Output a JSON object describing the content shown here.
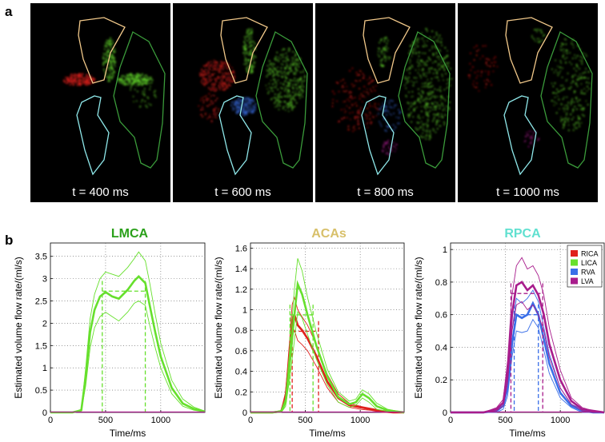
{
  "panel_a": {
    "label": "a",
    "frames": [
      "t = 400 ms",
      "t = 600 ms",
      "t = 800 ms",
      "t = 1000 ms"
    ]
  },
  "panel_b": {
    "label": "b"
  },
  "colors": {
    "RICA": "#e0201c",
    "LICA": "#66e02c",
    "RVA": "#3a6fe8",
    "LVA": "#a81c8c",
    "lmca_title": "#2aa01a",
    "acas_title": "#d8c06a",
    "rpca_title": "#60e0d0",
    "outline_aca": "#f2c98a",
    "outline_mca": "#3a9a3a",
    "outline_pca": "#8fe8ea"
  },
  "legend": [
    "RICA",
    "LICA",
    "RVA",
    "LVA"
  ],
  "chart_data": [
    {
      "type": "line",
      "title": "LMCA",
      "xlabel": "Time/ms",
      "ylabel": "Estimated volume flow rate/(ml/s)",
      "xlim": [
        0,
        1400
      ],
      "ylim": [
        0,
        3.8
      ],
      "xticks": [
        0,
        500,
        1000
      ],
      "yticks": [
        0,
        0.5,
        1,
        1.5,
        2,
        2.5,
        3,
        3.5
      ],
      "grid": "dotted",
      "series": [
        {
          "name": "LICA",
          "x": [
            0,
            200,
            280,
            320,
            360,
            400,
            450,
            500,
            560,
            620,
            700,
            760,
            800,
            860,
            900,
            950,
            1000,
            1100,
            1200,
            1300,
            1400
          ],
          "mean": [
            0,
            0,
            0.05,
            0.8,
            1.8,
            2.3,
            2.6,
            2.7,
            2.6,
            2.55,
            2.75,
            2.95,
            3.05,
            2.9,
            2.4,
            1.8,
            1.25,
            0.55,
            0.2,
            0.08,
            0.02
          ],
          "upper": [
            0,
            0,
            0.07,
            1.0,
            2.1,
            2.65,
            3.0,
            3.15,
            3.1,
            3.05,
            3.25,
            3.45,
            3.6,
            3.4,
            2.9,
            2.2,
            1.55,
            0.72,
            0.3,
            0.12,
            0.03
          ],
          "lower": [
            0,
            0,
            0.03,
            0.6,
            1.45,
            1.9,
            2.15,
            2.25,
            2.15,
            2.05,
            2.25,
            2.45,
            2.5,
            2.4,
            1.95,
            1.45,
            1.0,
            0.42,
            0.14,
            0.05,
            0.01
          ],
          "marker_x": [
            470,
            860
          ],
          "marker_y": 2.72
        }
      ]
    },
    {
      "type": "line",
      "title": "ACAs",
      "xlabel": "Time/ms",
      "ylabel": "Estimated volume flow rate/(ml/s)",
      "xlim": [
        0,
        1400
      ],
      "ylim": [
        0,
        1.65
      ],
      "xticks": [
        0,
        500,
        1000
      ],
      "yticks": [
        0,
        0.2,
        0.4,
        0.6,
        0.8,
        1,
        1.2,
        1.4,
        1.6
      ],
      "grid": "dotted",
      "series": [
        {
          "name": "RICA",
          "x": [
            0,
            200,
            280,
            320,
            360,
            380,
            400,
            430,
            470,
            520,
            600,
            700,
            800,
            900,
            1000,
            1100,
            1200,
            1300,
            1400
          ],
          "mean": [
            0,
            0,
            0.01,
            0.15,
            0.6,
            0.9,
            0.95,
            0.85,
            0.8,
            0.72,
            0.55,
            0.3,
            0.14,
            0.07,
            0.05,
            0.03,
            0.01,
            0,
            0
          ],
          "upper": [
            0,
            0,
            0.02,
            0.2,
            0.75,
            1.05,
            1.12,
            1.0,
            0.93,
            0.85,
            0.66,
            0.37,
            0.18,
            0.09,
            0.06,
            0.04,
            0.02,
            0.01,
            0
          ],
          "lower": [
            0,
            0,
            0.0,
            0.1,
            0.45,
            0.74,
            0.8,
            0.7,
            0.66,
            0.6,
            0.45,
            0.24,
            0.1,
            0.05,
            0.03,
            0.02,
            0.0,
            0,
            0
          ],
          "marker_x": [
            380,
            620
          ],
          "marker_y": 0.79
        },
        {
          "name": "LICA",
          "x": [
            0,
            200,
            280,
            320,
            360,
            400,
            430,
            470,
            520,
            600,
            700,
            800,
            900,
            960,
            1020,
            1080,
            1150,
            1250,
            1400
          ],
          "mean": [
            0,
            0,
            0.01,
            0.1,
            0.5,
            0.95,
            1.25,
            1.15,
            0.95,
            0.65,
            0.35,
            0.15,
            0.08,
            0.1,
            0.18,
            0.14,
            0.06,
            0.02,
            0
          ],
          "upper": [
            0,
            0,
            0.02,
            0.14,
            0.65,
            1.2,
            1.5,
            1.38,
            1.12,
            0.78,
            0.42,
            0.2,
            0.11,
            0.13,
            0.22,
            0.18,
            0.09,
            0.03,
            0
          ],
          "lower": [
            0,
            0,
            0.0,
            0.06,
            0.35,
            0.7,
            0.98,
            0.92,
            0.76,
            0.52,
            0.27,
            0.1,
            0.05,
            0.07,
            0.14,
            0.1,
            0.03,
            0.01,
            0
          ],
          "marker_x": [
            360,
            570
          ],
          "marker_y": 0.95
        }
      ]
    },
    {
      "type": "line",
      "title": "RPCA",
      "xlabel": "Time/ms",
      "ylabel": "Estimated volume flow rate/(ml/s)",
      "xlim": [
        0,
        1400
      ],
      "ylim": [
        0,
        1.04
      ],
      "xticks": [
        0,
        500,
        1000
      ],
      "yticks": [
        0,
        0.2,
        0.4,
        0.6,
        0.8,
        1
      ],
      "grid": "dotted",
      "legend_position": "top-right",
      "series": [
        {
          "name": "RVA",
          "x": [
            0,
            300,
            420,
            480,
            520,
            560,
            600,
            650,
            700,
            750,
            800,
            850,
            900,
            1000,
            1100,
            1200,
            1300,
            1400
          ],
          "mean": [
            0,
            0.0,
            0.01,
            0.04,
            0.15,
            0.42,
            0.6,
            0.58,
            0.6,
            0.67,
            0.6,
            0.45,
            0.3,
            0.12,
            0.04,
            0.01,
            0,
            0
          ],
          "upper": [
            0,
            0.0,
            0.02,
            0.06,
            0.2,
            0.5,
            0.7,
            0.67,
            0.7,
            0.75,
            0.68,
            0.52,
            0.36,
            0.15,
            0.05,
            0.02,
            0,
            0
          ],
          "lower": [
            0,
            0.0,
            0.0,
            0.02,
            0.1,
            0.34,
            0.5,
            0.49,
            0.5,
            0.57,
            0.52,
            0.38,
            0.24,
            0.09,
            0.03,
            0.0,
            0,
            0
          ],
          "marker_x": [
            580,
            800
          ],
          "marker_y": 0.6
        },
        {
          "name": "LVA",
          "x": [
            0,
            300,
            420,
            480,
            520,
            560,
            600,
            650,
            700,
            750,
            800,
            850,
            900,
            1000,
            1100,
            1200,
            1300,
            1400
          ],
          "mean": [
            0,
            0.0,
            0.02,
            0.06,
            0.25,
            0.6,
            0.78,
            0.8,
            0.75,
            0.78,
            0.72,
            0.6,
            0.42,
            0.2,
            0.07,
            0.02,
            0.01,
            0
          ],
          "upper": [
            0,
            0.0,
            0.03,
            0.08,
            0.32,
            0.72,
            0.9,
            0.95,
            0.88,
            0.9,
            0.84,
            0.72,
            0.52,
            0.26,
            0.09,
            0.03,
            0.01,
            0
          ],
          "lower": [
            0,
            0.0,
            0.01,
            0.04,
            0.18,
            0.5,
            0.66,
            0.68,
            0.63,
            0.66,
            0.6,
            0.5,
            0.34,
            0.15,
            0.05,
            0.01,
            0.0,
            0
          ],
          "marker_x": [
            550,
            840
          ],
          "marker_y": 0.73
        }
      ]
    }
  ]
}
